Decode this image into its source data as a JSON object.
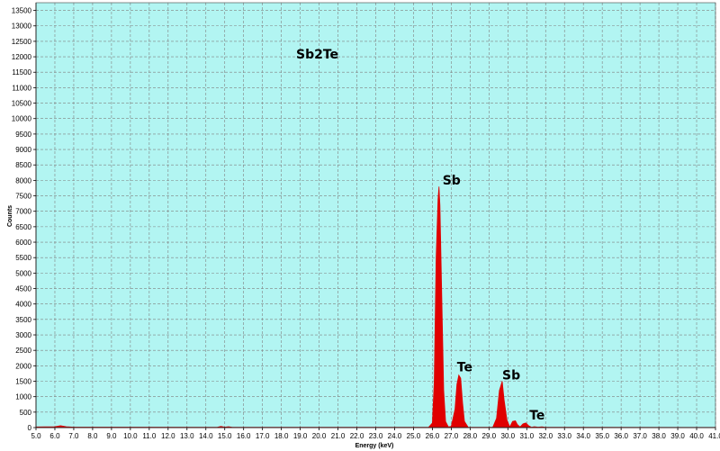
{
  "chart_data": {
    "type": "area",
    "title": "Sb2Te",
    "xlabel": "Energy (keV)",
    "ylabel": "Counts",
    "xlim": [
      5.0,
      41.0
    ],
    "ylim": [
      0,
      13750
    ],
    "x_ticks": [
      5.0,
      6.0,
      7.0,
      8.0,
      9.0,
      10.0,
      11.0,
      12.0,
      13.0,
      14.0,
      15.0,
      16.0,
      17.0,
      18.0,
      19.0,
      20.0,
      21.0,
      22.0,
      23.0,
      24.0,
      25.0,
      26.0,
      27.0,
      28.0,
      29.0,
      30.0,
      31.0,
      32.0,
      33.0,
      34.0,
      35.0,
      36.0,
      37.0,
      38.0,
      39.0,
      40.0,
      41.0
    ],
    "y_ticks": [
      0,
      500,
      1000,
      1500,
      2000,
      2500,
      3000,
      3500,
      4000,
      4500,
      5000,
      5500,
      6000,
      6500,
      7000,
      7500,
      8000,
      8500,
      9000,
      9500,
      10000,
      10500,
      11000,
      11500,
      12000,
      12500,
      13000,
      13500
    ],
    "grid": true,
    "background_color": "#b2f5f2",
    "series_color": "#e00000",
    "series": [
      {
        "x": [
          5.0,
          6.0,
          6.3,
          6.6,
          7.0,
          14.6,
          14.8,
          15.0,
          15.2,
          15.4,
          25.8,
          26.0,
          26.1,
          26.2,
          26.3,
          26.35,
          26.4,
          26.5,
          26.6,
          26.7,
          26.85,
          27.0,
          27.2,
          27.3,
          27.4,
          27.5,
          27.6,
          27.7,
          27.9,
          29.2,
          29.4,
          29.55,
          29.7,
          29.8,
          29.95,
          30.1,
          30.25,
          30.4,
          30.5,
          30.65,
          30.8,
          30.95,
          31.1,
          31.25,
          31.4,
          31.6,
          31.8,
          32.0,
          41.0
        ],
        "y": [
          20,
          30,
          60,
          30,
          15,
          10,
          40,
          15,
          30,
          10,
          10,
          150,
          1500,
          5500,
          7400,
          7800,
          7200,
          4200,
          1200,
          200,
          20,
          40,
          600,
          1400,
          1700,
          1600,
          800,
          200,
          10,
          10,
          300,
          1200,
          1500,
          900,
          250,
          20,
          200,
          220,
          100,
          20,
          120,
          150,
          60,
          10,
          30,
          15,
          25,
          10,
          5
        ]
      }
    ],
    "annotations": [
      {
        "text": "Sb",
        "x": 26.3,
        "y": 7800
      },
      {
        "text": "Te",
        "x": 27.4,
        "y": 1700
      },
      {
        "text": "Sb",
        "x": 29.7,
        "y": 1500
      },
      {
        "text": "Te",
        "x": 30.95,
        "y": 150
      }
    ]
  }
}
